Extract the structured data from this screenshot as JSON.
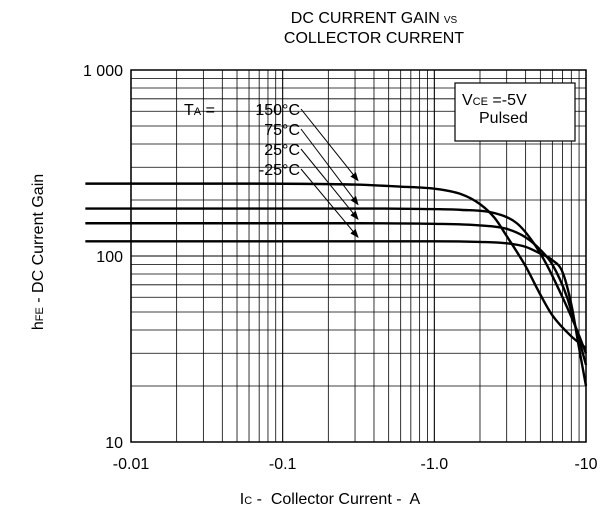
{
  "chart_data": {
    "type": "line",
    "title_line1": "DC CURRENT GAIN",
    "title_vs": "VS",
    "title_line2": "COLLECTOR CURRENT",
    "xlabel": {
      "main": "I",
      "sub": "C",
      "rest": " -  Collector Current -  A"
    },
    "ylabel": {
      "main": "h",
      "sub": "FE",
      "rest": " - DC  Current Gain"
    },
    "x_scale": "log",
    "y_scale": "log",
    "xlim": [
      -0.01,
      -10
    ],
    "ylim": [
      10,
      1000
    ],
    "x_ticks": [
      {
        "value": -0.01,
        "label": "-0.01"
      },
      {
        "value": -0.1,
        "label": "-0.1"
      },
      {
        "value": -1.0,
        "label": "-1.0"
      },
      {
        "value": -10,
        "label": "-10"
      }
    ],
    "y_ticks": [
      {
        "value": 10,
        "label": "10"
      },
      {
        "value": 100,
        "label": "100"
      },
      {
        "value": 1000,
        "label": "1 000"
      }
    ],
    "grid": true,
    "condition_box": {
      "line1_main": "V",
      "line1_sub": "CE",
      "line1_rest": " =-5V",
      "line2": "Pulsed"
    },
    "legend_prefix": {
      "main": "T",
      "sub": "A",
      "rest": " = "
    },
    "series": [
      {
        "name": "150°C",
        "x": [
          -0.005,
          -0.05,
          -0.3,
          -0.6,
          -1.0,
          -1.5,
          -2.0,
          -2.5,
          -3.0,
          -4.0,
          -5.0,
          -6.0,
          -8.0,
          -10.0
        ],
        "y": [
          245,
          245,
          242,
          236,
          230,
          215,
          190,
          160,
          128,
          88,
          62,
          48,
          37,
          32
        ]
      },
      {
        "name": "75°C",
        "x": [
          -0.005,
          -0.05,
          -0.3,
          -0.8,
          -1.5,
          -2.5,
          -3.5,
          -4.5,
          -5.5,
          -7.0,
          -8.5,
          -10.0
        ],
        "y": [
          180,
          180,
          180,
          179,
          177,
          170,
          150,
          118,
          90,
          60,
          42,
          30
        ]
      },
      {
        "name": "25°C",
        "x": [
          -0.005,
          -0.05,
          -0.3,
          -1.0,
          -2.0,
          -3.0,
          -4.0,
          -5.0,
          -6.0,
          -7.5,
          -8.5,
          -10.0
        ],
        "y": [
          150,
          150,
          150,
          149,
          146,
          140,
          126,
          108,
          90,
          60,
          42,
          26
        ]
      },
      {
        "name": "-25°C",
        "x": [
          -0.005,
          -0.05,
          -0.3,
          -1.0,
          -2.0,
          -3.0,
          -4.0,
          -5.0,
          -6.0,
          -7.0,
          -8.0,
          -9.0,
          -10.0
        ],
        "y": [
          120,
          120,
          120,
          120,
          119,
          117,
          112,
          103,
          95,
          82,
          55,
          32,
          20
        ]
      }
    ],
    "series_label_anchor_x": [
      -0.3,
      -0.3,
      -0.3,
      -0.3
    ]
  }
}
